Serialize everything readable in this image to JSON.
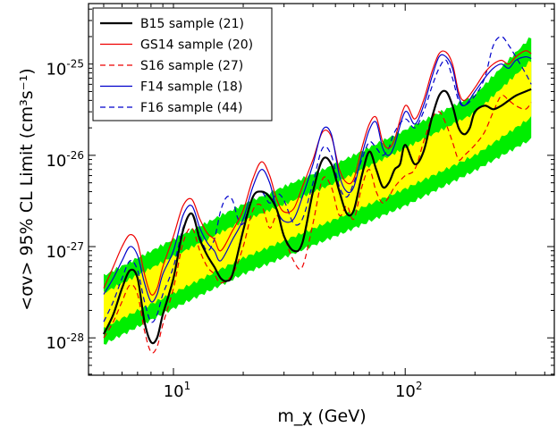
{
  "chart_data": {
    "type": "line",
    "xlabel": "m_χ (GeV)",
    "ylabel": "<σv> 95% CL Limit (cm³s⁻¹)",
    "xscale": "log",
    "yscale": "log",
    "xlim": [
      4.3,
      440
    ],
    "ylim": [
      3.9e-29,
      4.6e-25
    ],
    "x_tick_labels": [
      {
        "value": 10,
        "base": "10",
        "exp": "1"
      },
      {
        "value": 100,
        "base": "10",
        "exp": "2"
      }
    ],
    "y_tick_labels": [
      {
        "value": 1e-28,
        "base": "10",
        "exp": "-28"
      },
      {
        "value": 1e-27,
        "base": "10",
        "exp": "-27"
      },
      {
        "value": 1e-26,
        "base": "10",
        "exp": "-26"
      },
      {
        "value": 1e-25,
        "base": "10",
        "exp": "-25"
      }
    ],
    "legend_position": "top-left",
    "bands": {
      "x": [
        5,
        10,
        20,
        50,
        100,
        200,
        350
      ],
      "outer_low": [
        8.5e-29,
        2.1e-28,
        5e-28,
        1.3e-27,
        2.8e-27,
        6.8e-27,
        1.5e-26
      ],
      "outer_high": [
        4.8e-28,
        1.2e-27,
        2.9e-27,
        8e-27,
        1.9e-26,
        4.6e-26,
        2e-25
      ],
      "inner_low": [
        1.3e-28,
        3.1e-28,
        7.5e-28,
        2e-27,
        4.3e-27,
        1e-26,
        2.6e-26
      ],
      "inner_high": [
        3.1e-28,
        7.8e-28,
        1.9e-27,
        5e-27,
        1.2e-26,
        2.9e-26,
        1.1e-25
      ],
      "outer_color": "#00ee00",
      "inner_color": "#ffff00"
    },
    "series": [
      {
        "name": "B15 sample (21)",
        "color": "#000000",
        "dash": "solid",
        "width": 2.2,
        "x": [
          5,
          5.5,
          6,
          6.5,
          7,
          7.5,
          8,
          8.5,
          9,
          10,
          11,
          12,
          13,
          14,
          15,
          16,
          17,
          18,
          20,
          22,
          24,
          26,
          28,
          30,
          33,
          36,
          40,
          44,
          48,
          52,
          56,
          60,
          65,
          70,
          75,
          80,
          85,
          90,
          95,
          100,
          110,
          120,
          130,
          140,
          150,
          160,
          170,
          180,
          190,
          200,
          220,
          240,
          260,
          280,
          300,
          330,
          350
        ],
        "y": [
          1.1e-28,
          1.8e-28,
          3.5e-28,
          5.5e-28,
          4.5e-28,
          1.5e-28,
          9e-29,
          1e-28,
          1.8e-28,
          4.5e-28,
          1.5e-27,
          2.3e-27,
          1.2e-27,
          8e-28,
          6e-28,
          4.5e-28,
          4.2e-28,
          5e-28,
          1.5e-27,
          3.5e-27,
          4e-27,
          3.5e-27,
          2.5e-27,
          1.3e-27,
          9e-28,
          1.1e-27,
          4e-27,
          9e-27,
          8e-27,
          4e-27,
          2.3e-27,
          2.5e-27,
          6e-27,
          1.1e-26,
          7e-27,
          4.5e-27,
          5e-27,
          7e-27,
          8e-27,
          1.3e-26,
          8e-27,
          1.1e-26,
          2.5e-26,
          4.5e-26,
          5e-26,
          3.5e-26,
          2e-26,
          1.7e-26,
          2e-26,
          3e-26,
          3.5e-26,
          3.2e-26,
          3.5e-26,
          4e-26,
          4.5e-26,
          5e-26,
          5.3e-26
        ]
      },
      {
        "name": "GS14 sample (20)",
        "color": "#ee0000",
        "dash": "solid",
        "width": 1.2,
        "x": [
          5,
          5.5,
          6,
          6.5,
          7,
          7.5,
          8,
          8.5,
          9,
          10,
          11,
          12,
          13,
          14,
          15,
          16,
          18,
          20,
          22,
          24,
          26,
          28,
          30,
          33,
          36,
          40,
          44,
          48,
          52,
          56,
          60,
          65,
          70,
          75,
          80,
          85,
          90,
          100,
          110,
          120,
          130,
          140,
          150,
          160,
          170,
          180,
          200,
          220,
          240,
          260,
          280,
          300,
          330,
          350
        ],
        "y": [
          3.5e-28,
          6e-28,
          1e-27,
          1.35e-27,
          1.1e-27,
          5e-28,
          3e-28,
          3.5e-28,
          6e-28,
          1.3e-27,
          2.8e-27,
          3.3e-27,
          2e-27,
          1.4e-27,
          1.2e-27,
          9e-28,
          1.5e-27,
          2.5e-27,
          5.5e-27,
          8.5e-27,
          6e-27,
          3.2e-27,
          2.4e-27,
          2.6e-27,
          4.5e-27,
          9e-27,
          1.8e-26,
          1.6e-26,
          7e-27,
          5e-27,
          5.5e-27,
          1.2e-26,
          2.2e-26,
          2.6e-26,
          1.4e-26,
          1.2e-26,
          1.5e-26,
          3.5e-26,
          2.5e-26,
          4e-26,
          8e-26,
          1.3e-25,
          1.35e-25,
          1e-25,
          5e-26,
          4e-26,
          5.5e-26,
          8e-26,
          1e-25,
          1.1e-25,
          1e-25,
          1.2e-25,
          1.4e-25,
          1.3e-25
        ]
      },
      {
        "name": "S16 sample (27)",
        "color": "#ee0000",
        "dash": "dashed",
        "width": 1.2,
        "x": [
          5,
          5.5,
          6,
          6.5,
          7,
          7.5,
          8,
          8.5,
          9,
          10,
          11,
          12,
          13,
          14,
          15,
          16,
          18,
          20,
          22,
          24,
          26,
          28,
          30,
          33,
          36,
          40,
          44,
          48,
          52,
          56,
          60,
          65,
          70,
          75,
          80,
          85,
          90,
          100,
          110,
          120,
          130,
          140,
          150,
          160,
          170,
          180,
          200,
          220,
          240,
          260,
          280,
          300,
          330,
          350
        ],
        "y": [
          1e-28,
          1.5e-28,
          2.5e-28,
          3.8e-28,
          3e-28,
          1.2e-28,
          7e-29,
          8e-29,
          1.4e-28,
          3.5e-28,
          1.1e-27,
          1.6e-27,
          9e-28,
          6e-28,
          5e-28,
          4e-28,
          5e-28,
          1e-27,
          2.5e-27,
          2.8e-27,
          1.6e-27,
          2.2e-27,
          1.3e-27,
          7e-28,
          6e-28,
          1.8e-27,
          5.5e-27,
          4.5e-27,
          2.2e-27,
          2.8e-27,
          2e-27,
          4.5e-27,
          7e-27,
          4e-27,
          3e-27,
          3.5e-27,
          4.5e-27,
          6e-27,
          7e-27,
          1.4e-26,
          2.5e-26,
          3e-26,
          2.2e-26,
          1.4e-26,
          9e-27,
          1e-26,
          1.3e-26,
          1.8e-26,
          3e-26,
          4.5e-26,
          4e-26,
          3.5e-26,
          3.2e-26,
          3.8e-26
        ]
      },
      {
        "name": "F14 sample (18)",
        "color": "#0000cc",
        "dash": "solid",
        "width": 1.2,
        "x": [
          5,
          5.5,
          6,
          6.5,
          7,
          7.5,
          8,
          8.5,
          9,
          10,
          11,
          12,
          13,
          14,
          15,
          16,
          18,
          20,
          22,
          24,
          26,
          28,
          30,
          33,
          36,
          40,
          44,
          48,
          52,
          56,
          60,
          65,
          70,
          75,
          80,
          85,
          90,
          100,
          110,
          120,
          130,
          140,
          150,
          160,
          170,
          180,
          200,
          220,
          240,
          260,
          280,
          300,
          330,
          350
        ],
        "y": [
          3e-28,
          4.5e-28,
          7e-28,
          1e-27,
          8e-28,
          4e-28,
          2.5e-28,
          3e-28,
          5e-28,
          9e-28,
          2.2e-27,
          2.8e-27,
          1.6e-27,
          1.1e-27,
          9e-28,
          7e-28,
          1.2e-27,
          2e-27,
          4.5e-27,
          7e-27,
          5e-27,
          2.5e-27,
          1.9e-27,
          2e-27,
          3.5e-27,
          8e-27,
          1.9e-26,
          1.7e-26,
          6e-27,
          4e-27,
          4.5e-27,
          1e-26,
          1.9e-26,
          2.3e-26,
          1.2e-26,
          1e-26,
          1.3e-26,
          3e-26,
          2.2e-26,
          3.5e-26,
          7e-26,
          1.2e-25,
          1.2e-25,
          9e-26,
          4.5e-26,
          3.5e-26,
          5e-26,
          7e-26,
          9e-26,
          1e-25,
          9e-26,
          1.1e-25,
          1.2e-25,
          1.15e-25
        ]
      },
      {
        "name": "F16 sample (44)",
        "color": "#0000cc",
        "dash": "dashed",
        "width": 1.2,
        "x": [
          5,
          5.5,
          6,
          6.5,
          7,
          7.5,
          8,
          8.5,
          9,
          10,
          11,
          12,
          13,
          14,
          15,
          16,
          17,
          18,
          19,
          20,
          22,
          24,
          26,
          28,
          30,
          33,
          36,
          40,
          44,
          48,
          52,
          56,
          60,
          65,
          70,
          75,
          80,
          85,
          90,
          100,
          110,
          120,
          130,
          140,
          150,
          160,
          170,
          180,
          200,
          220,
          240,
          260,
          280,
          300,
          330,
          350
        ],
        "y": [
          1.5e-28,
          2.5e-28,
          4.5e-28,
          7e-28,
          5.5e-28,
          2.5e-28,
          1.5e-28,
          1.8e-28,
          3e-28,
          6e-28,
          1.6e-27,
          2.3e-27,
          1.3e-27,
          9e-28,
          1.2e-27,
          2.5e-27,
          3.5e-27,
          3.2e-27,
          2e-27,
          1.8e-27,
          3.5e-27,
          4e-27,
          3e-27,
          3.8e-27,
          3.2e-27,
          1.8e-27,
          2e-27,
          5e-27,
          1.2e-26,
          1e-26,
          4.5e-27,
          3.5e-27,
          5e-27,
          9e-27,
          1.4e-26,
          1.2e-26,
          1e-26,
          1.2e-26,
          1.8e-26,
          2.5e-26,
          2e-26,
          3e-26,
          5.5e-26,
          9e-26,
          1.1e-25,
          7e-26,
          4e-26,
          3.5e-26,
          4.5e-26,
          7e-26,
          1.6e-25,
          2e-25,
          1.6e-25,
          1.2e-25,
          8e-26,
          6e-26
        ]
      }
    ]
  }
}
